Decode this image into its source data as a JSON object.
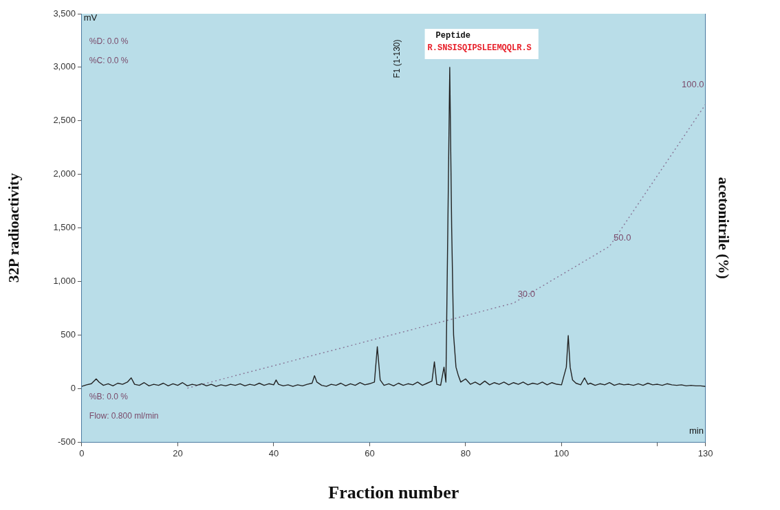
{
  "chart_data": {
    "type": "line",
    "xlabel": "Fraction number",
    "ylabel": "32P radioactivity",
    "y2label": "acetonitrile (%)",
    "xlim": [
      0,
      130
    ],
    "xticks": [
      0,
      20,
      40,
      60,
      80,
      100,
      {
        "value": 120,
        "label": null
      },
      130
    ],
    "ylim": [
      -500,
      3500
    ],
    "yticks": [
      {
        "value": -500,
        "label": "-500"
      },
      0,
      500,
      {
        "value": 1000,
        "label": "1,000"
      },
      {
        "value": 1500,
        "label": "1,500"
      },
      {
        "value": 2000,
        "label": "2,000"
      },
      {
        "value": 2500,
        "label": "2,500"
      },
      {
        "value": 3000,
        "label": "3,000"
      },
      {
        "value": 3500,
        "label": "3,500"
      }
    ],
    "y2lim": [
      -19,
      132
    ],
    "grid": false,
    "legend": false,
    "marker": "none",
    "annotations": [
      "mV",
      "%D: 0.0 %",
      "%C: 0.0 %",
      "%B: 0.0 %",
      "Flow: 0.800 ml/min",
      "min",
      "Peptide",
      "R.SNSISQIPSLEEMQQLR.S",
      "F1 (1-130)"
    ],
    "series": [
      {
        "type": "line",
        "color": "#222222",
        "line_style": "solid",
        "x": [
          0,
          1,
          2,
          3,
          3.6,
          4.5,
          5.5,
          6.5,
          7.5,
          8.5,
          9.5,
          10.3,
          11,
          12,
          13,
          14,
          15,
          16,
          17,
          18,
          19,
          20,
          21,
          22,
          23,
          24,
          25,
          26,
          27,
          28,
          29,
          30,
          31,
          32,
          33,
          34,
          35,
          36,
          37,
          38,
          39,
          40,
          40.5,
          41,
          42,
          43,
          44,
          45,
          46,
          47,
          48,
          48.5,
          49,
          50,
          51,
          52,
          53,
          54,
          55,
          56,
          57,
          58,
          59,
          60,
          61,
          61.6,
          62.2,
          63,
          64,
          65,
          66,
          67,
          68,
          69,
          70,
          71,
          72,
          73,
          73.5,
          74,
          74.8,
          75.5,
          75.9,
          76.3,
          76.7,
          77.1,
          77.5,
          78,
          78.5,
          79,
          80,
          81,
          82,
          83,
          84,
          85,
          86,
          87,
          88,
          89,
          90,
          91,
          92,
          93,
          94,
          95,
          96,
          97,
          98,
          99,
          100,
          101,
          101.4,
          101.8,
          102.3,
          103,
          104,
          104.8,
          105.5,
          106,
          107,
          108,
          109,
          110,
          111,
          112,
          113,
          114,
          115,
          116,
          117,
          118,
          119,
          120,
          121,
          122,
          123,
          124,
          125,
          126,
          127,
          128,
          129,
          130
        ],
        "values": [
          20,
          35,
          45,
          90,
          60,
          30,
          45,
          25,
          50,
          40,
          60,
          100,
          40,
          30,
          55,
          25,
          40,
          30,
          50,
          25,
          45,
          30,
          55,
          25,
          40,
          30,
          45,
          25,
          40,
          20,
          35,
          25,
          40,
          30,
          45,
          25,
          40,
          30,
          50,
          30,
          45,
          35,
          80,
          40,
          25,
          35,
          20,
          35,
          25,
          40,
          50,
          120,
          60,
          30,
          20,
          40,
          30,
          50,
          25,
          45,
          30,
          55,
          35,
          45,
          60,
          390,
          80,
          30,
          45,
          25,
          50,
          30,
          45,
          35,
          60,
          30,
          50,
          70,
          250,
          40,
          30,
          200,
          60,
          1500,
          3000,
          1500,
          500,
          200,
          120,
          60,
          90,
          40,
          60,
          35,
          70,
          35,
          55,
          40,
          60,
          35,
          55,
          40,
          60,
          35,
          50,
          40,
          60,
          35,
          55,
          40,
          35,
          200,
          495,
          200,
          80,
          50,
          35,
          100,
          40,
          50,
          30,
          45,
          35,
          55,
          30,
          45,
          35,
          40,
          30,
          45,
          30,
          50,
          35,
          40,
          30,
          45,
          35,
          30,
          35,
          25,
          30,
          25,
          25,
          20
        ]
      },
      {
        "type": "line",
        "axis": "y2",
        "color": "#8a7a9a",
        "line_style": "dotted",
        "x": [
          22,
          90,
          110,
          130
        ],
        "values": [
          0,
          30,
          50,
          100
        ],
        "value_labels": [
          null,
          "30.0",
          "50.0",
          "100.0"
        ]
      }
    ]
  }
}
